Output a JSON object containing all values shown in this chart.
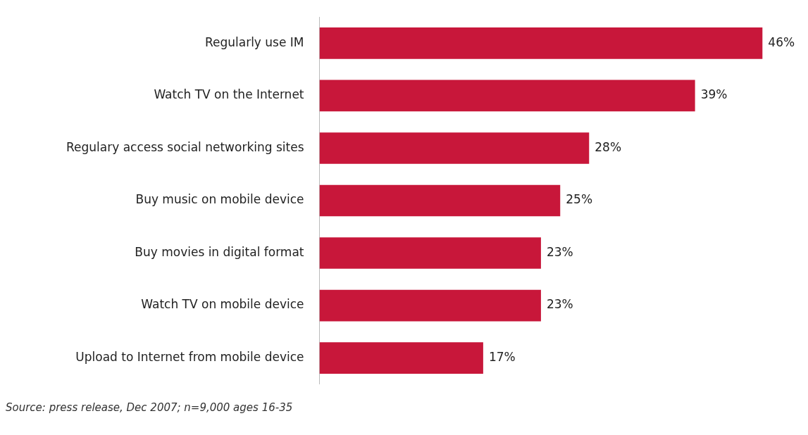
{
  "chart_data": {
    "type": "bar",
    "orientation": "horizontal",
    "categories": [
      "Regularly use IM",
      "Watch TV on the Internet",
      "Regulary access social networking sites",
      "Buy music on mobile device",
      "Buy movies in digital format",
      "Watch TV on mobile device",
      "Upload to Internet from mobile device"
    ],
    "values": [
      46,
      39,
      28,
      25,
      23,
      23,
      17
    ],
    "value_labels": [
      "46%",
      "39%",
      "28%",
      "25%",
      "23%",
      "23%",
      "17%"
    ],
    "color": "#c8173a",
    "annotations": [
      "Source: press release, Dec 2007; n=9,000 ages 16-35"
    ]
  }
}
